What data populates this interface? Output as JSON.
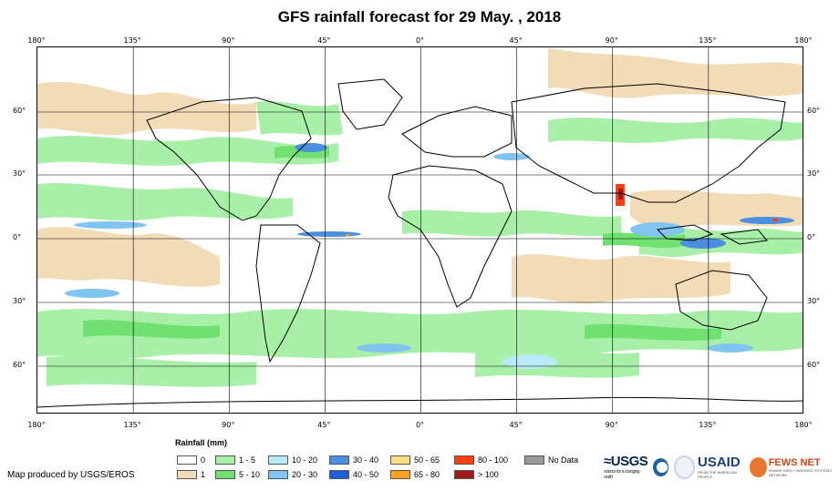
{
  "title": "GFS rainfall forecast for 29 May. , 2018",
  "axes": {
    "lon_labels": [
      "180°",
      "135°",
      "90°",
      "45°",
      "0°",
      "45°",
      "90°",
      "135°",
      "180°"
    ],
    "lat_labels": [
      "60°",
      "30°",
      "0°",
      "30°",
      "60°"
    ]
  },
  "legend": {
    "title": "Rainfall (mm)",
    "items": [
      {
        "label": "0",
        "color": "#ffffff"
      },
      {
        "label": "1",
        "color": "#f2dcb8"
      },
      {
        "label": "1 - 5",
        "color": "#a8f0a8"
      },
      {
        "label": "5 - 10",
        "color": "#70e070"
      },
      {
        "label": "10 - 20",
        "color": "#b8eaf8"
      },
      {
        "label": "20 - 30",
        "color": "#80c4f0"
      },
      {
        "label": "30 - 40",
        "color": "#4a8fe0"
      },
      {
        "label": "40 - 50",
        "color": "#1f5ed8"
      },
      {
        "label": "50 - 65",
        "color": "#ffe080"
      },
      {
        "label": "65 - 80",
        "color": "#ffa020"
      },
      {
        "label": "80 - 100",
        "color": "#ff4010"
      },
      {
        "label": "> 100",
        "color": "#a01818"
      },
      {
        "label": "No Data",
        "color": "#999999"
      }
    ]
  },
  "credit": "Map produced by USGS/EROS",
  "logos": {
    "usgs": "≈USGS",
    "usgs_tagline": "science for a changing world",
    "usaid": "USAID",
    "usaid_tagline": "FROM THE AMERICAN PEOPLE",
    "fews": "FEWS NET",
    "fews_tagline": "FAMINE EARLY WARNING SYSTEMS NETWORK"
  }
}
